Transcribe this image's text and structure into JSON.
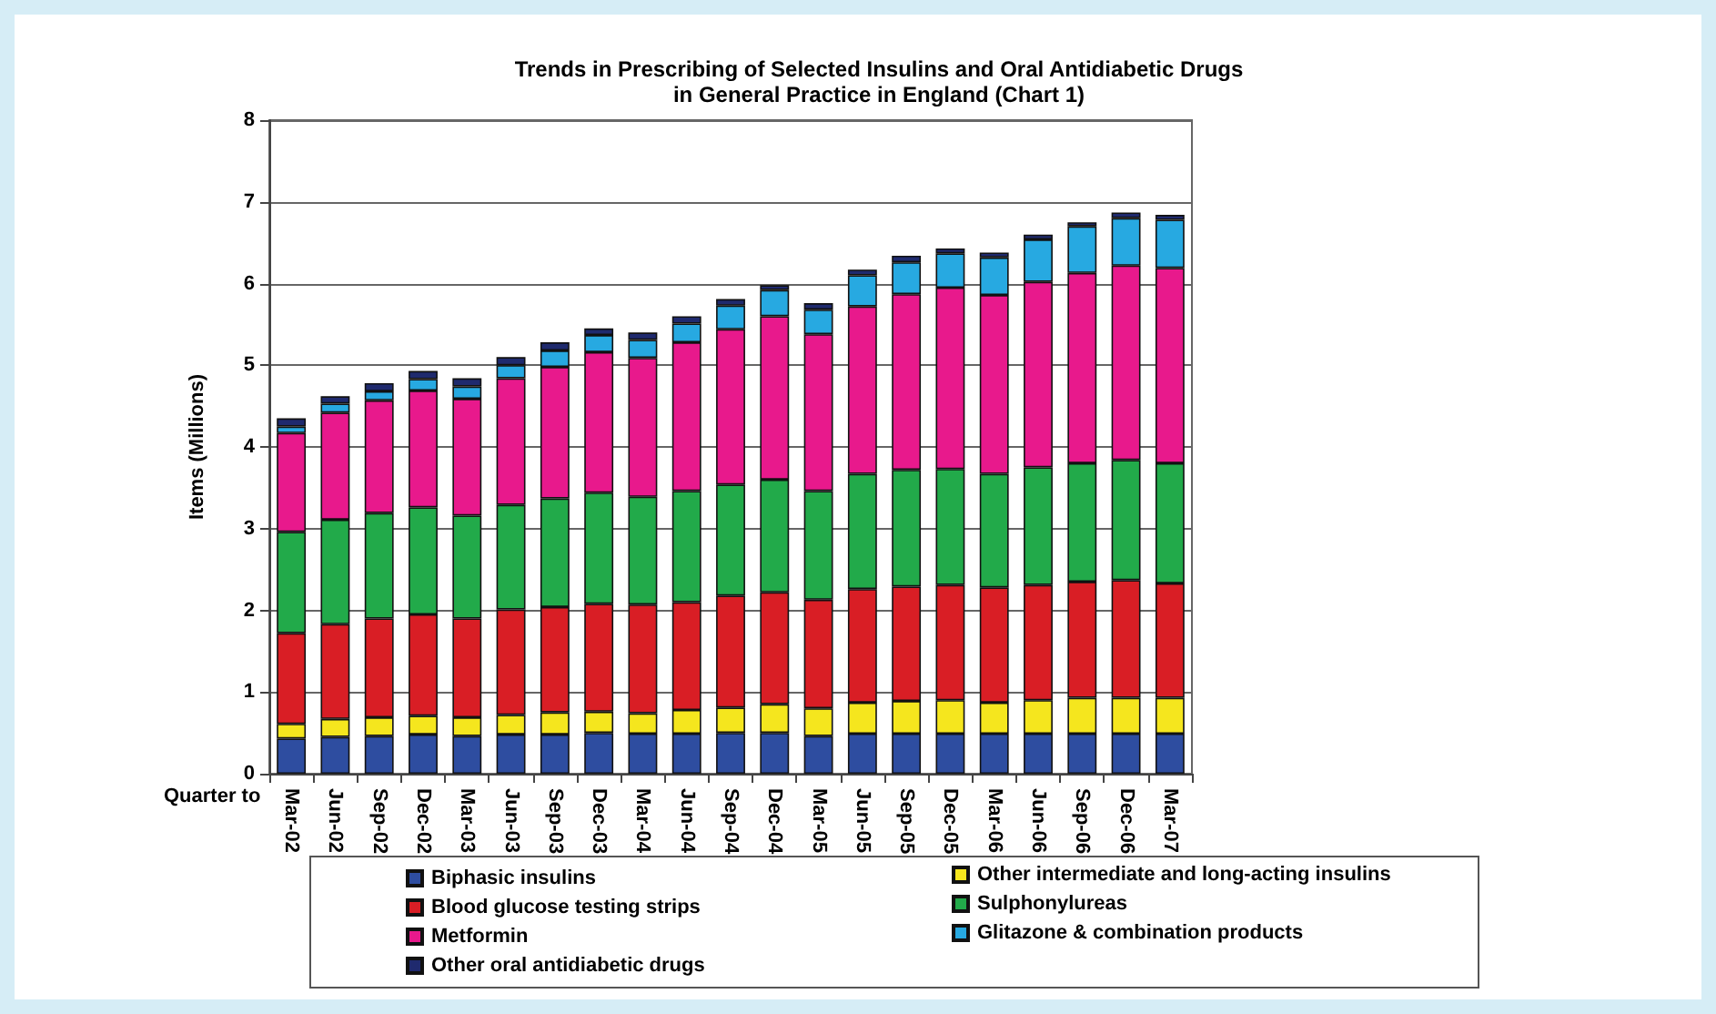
{
  "chart_data": {
    "type": "bar",
    "stacked": true,
    "title": "Trends in Prescribing of Selected Insulins and Oral Antidiabetic Drugs\nin General Practice in England (Chart 1)",
    "xlabel": "Quarter to",
    "ylabel": "Items (Millions)",
    "categories": [
      "Mar-02",
      "Jun-02",
      "Sep-02",
      "Dec-02",
      "Mar-03",
      "Jun-03",
      "Sep-03",
      "Dec-03",
      "Mar-04",
      "Jun-04",
      "Sep-04",
      "Dec-04",
      "Mar-05",
      "Jun-05",
      "Sep-05",
      "Dec-05",
      "Mar-06",
      "Jun-06",
      "Sep-06",
      "Dec-06",
      "Mar-07"
    ],
    "series": [
      {
        "name": "Biphasic insulins",
        "color": "#2e4da0",
        "values": [
          0.43,
          0.45,
          0.46,
          0.48,
          0.46,
          0.48,
          0.48,
          0.5,
          0.49,
          0.49,
          0.5,
          0.5,
          0.46,
          0.49,
          0.49,
          0.49,
          0.49,
          0.49,
          0.49,
          0.49,
          0.49
        ]
      },
      {
        "name": "Other intermediate and long-acting insulins",
        "color": "#f5e61e",
        "values": [
          0.18,
          0.22,
          0.23,
          0.23,
          0.23,
          0.24,
          0.27,
          0.26,
          0.25,
          0.29,
          0.31,
          0.35,
          0.34,
          0.38,
          0.4,
          0.41,
          0.38,
          0.41,
          0.44,
          0.44,
          0.44
        ]
      },
      {
        "name": "Blood glucose testing strips",
        "color": "#d91e25",
        "values": [
          1.11,
          1.16,
          1.21,
          1.24,
          1.21,
          1.29,
          1.29,
          1.32,
          1.33,
          1.32,
          1.37,
          1.37,
          1.33,
          1.39,
          1.4,
          1.41,
          1.41,
          1.41,
          1.42,
          1.44,
          1.4
        ]
      },
      {
        "name": "Sulphonylureas",
        "color": "#22aa4a",
        "values": [
          1.24,
          1.28,
          1.29,
          1.31,
          1.26,
          1.28,
          1.33,
          1.36,
          1.32,
          1.36,
          1.36,
          1.38,
          1.33,
          1.41,
          1.43,
          1.42,
          1.39,
          1.44,
          1.45,
          1.47,
          1.47
        ]
      },
      {
        "name": "Metformin",
        "color": "#e8198c",
        "values": [
          1.21,
          1.31,
          1.38,
          1.43,
          1.43,
          1.55,
          1.61,
          1.72,
          1.7,
          1.82,
          1.9,
          2.0,
          1.92,
          2.05,
          2.15,
          2.22,
          2.19,
          2.27,
          2.33,
          2.38,
          2.39
        ]
      },
      {
        "name": "Glitazone & combination products",
        "color": "#27a9e1",
        "values": [
          0.08,
          0.11,
          0.11,
          0.14,
          0.15,
          0.16,
          0.2,
          0.21,
          0.22,
          0.23,
          0.29,
          0.32,
          0.3,
          0.38,
          0.39,
          0.42,
          0.46,
          0.52,
          0.57,
          0.58,
          0.59
        ]
      },
      {
        "name": "Other oral antidiabetic drugs",
        "color": "#1f2a6e",
        "values": [
          0.1,
          0.09,
          0.1,
          0.1,
          0.1,
          0.1,
          0.1,
          0.08,
          0.09,
          0.09,
          0.08,
          0.06,
          0.08,
          0.07,
          0.08,
          0.06,
          0.06,
          0.06,
          0.05,
          0.07,
          0.06
        ]
      }
    ],
    "ylim": [
      0,
      8
    ],
    "yticks": [
      0,
      1,
      2,
      3,
      4,
      5,
      6,
      7,
      8
    ],
    "grid": "y",
    "legend": "bottom"
  }
}
